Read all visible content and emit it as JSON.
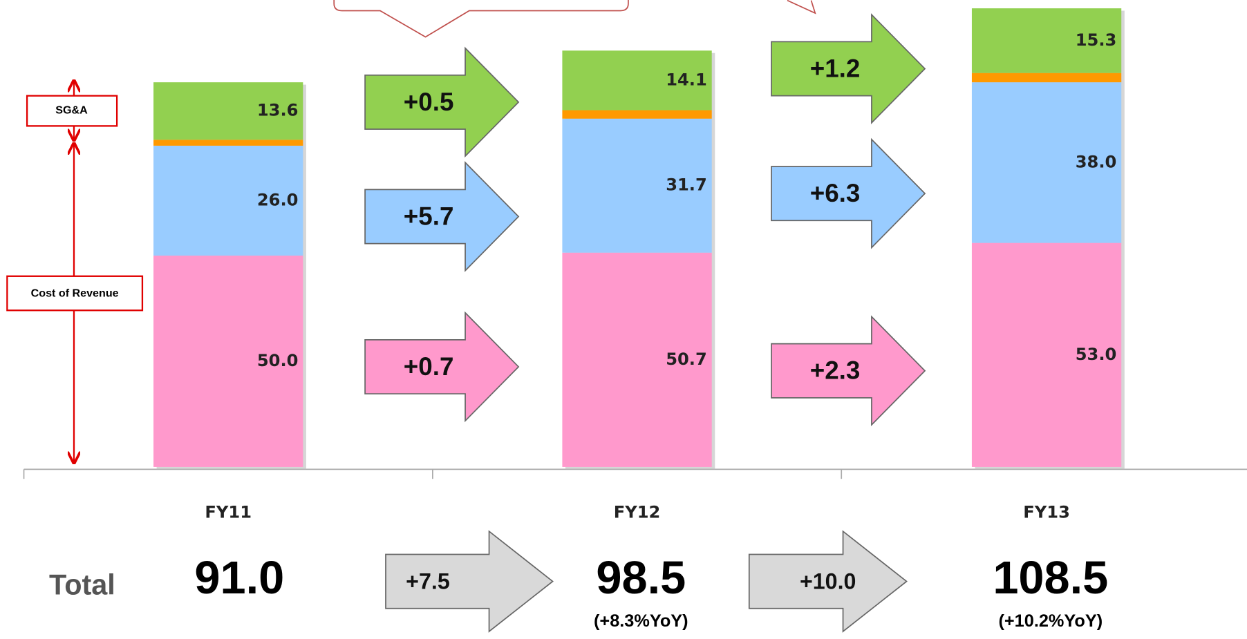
{
  "chart_data": {
    "type": "bar",
    "stacked": true,
    "categories": [
      "FY11",
      "FY12",
      "FY13"
    ],
    "series": [
      {
        "color": "#ff99cc",
        "values": [
          50.0,
          50.7,
          53.0
        ],
        "value_labels": [
          "50.0",
          "50.7",
          "53.0"
        ]
      },
      {
        "color": "#99ccff",
        "values": [
          26.0,
          31.7,
          38.0
        ],
        "value_labels": [
          "26.0",
          "31.7",
          "38.0"
        ]
      },
      {
        "color": "#ff9900",
        "values": [
          1.4,
          2.0,
          2.2
        ]
      },
      {
        "color": "#92d050",
        "values": [
          13.6,
          14.1,
          15.3
        ],
        "value_labels": [
          "13.6",
          "14.1",
          "15.3"
        ]
      }
    ],
    "ylim": [
      0,
      110
    ],
    "brackets": [
      "SG&A",
      "Cost of Revenue"
    ],
    "changes": [
      [
        "+0.7",
        "+5.7",
        "+0.5"
      ],
      [
        "+2.3",
        "+6.3",
        "+1.2"
      ]
    ],
    "totals": {
      "label": "Total",
      "values": [
        "91.0",
        "98.5",
        "108.5"
      ],
      "changes": [
        "+7.5",
        "+10.0"
      ],
      "yoy": [
        "(+8.3%YoY)",
        "(+10.2%YoY)"
      ]
    }
  }
}
